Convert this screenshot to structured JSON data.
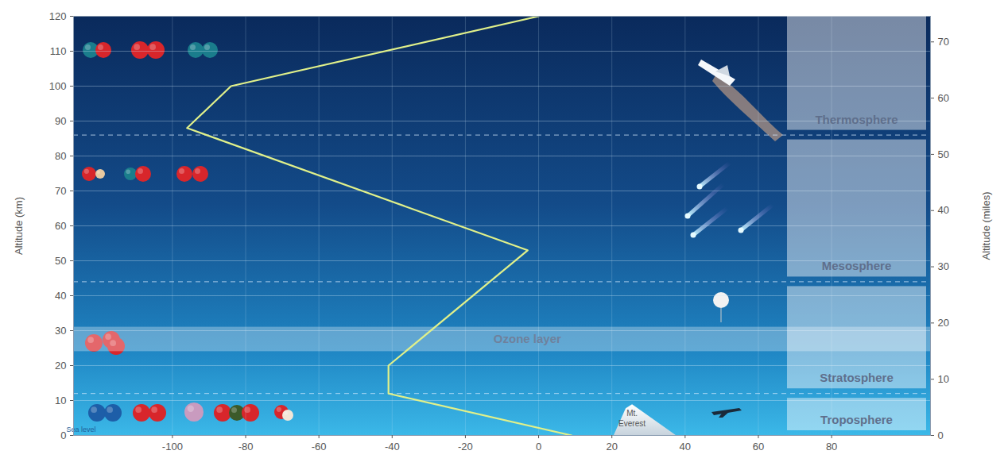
{
  "chart_data": {
    "type": "line",
    "x": [
      9,
      -41,
      -41,
      -3,
      -96,
      -84,
      0
    ],
    "values": [
      0,
      12,
      20,
      53,
      88,
      100,
      120
    ],
    "color": "#e0f08a",
    "line_style": "solid",
    "xlim": [
      -127,
      107
    ],
    "xticks": [
      -100,
      -80,
      -60,
      -40,
      -20,
      0,
      20,
      40,
      60,
      80
    ],
    "ylim": [
      0,
      120
    ],
    "yticks": [
      0,
      10,
      20,
      30,
      40,
      50,
      60,
      70,
      80,
      90,
      100,
      110,
      120
    ],
    "y_label": "Altitude (km)",
    "y2lim": [
      0,
      74.56
    ],
    "y2ticks": [
      0,
      10,
      20,
      30,
      40,
      50,
      60,
      70
    ],
    "y2_label": "Altitude (miles)",
    "grid": true,
    "layers": [
      {
        "name": "Troposphere",
        "bottom": 0,
        "top": 12
      },
      {
        "name": "Stratosphere",
        "bottom": 12,
        "top": 44
      },
      {
        "name": "Mesosphere",
        "bottom": 44,
        "top": 86
      },
      {
        "name": "Thermosphere",
        "bottom": 86,
        "top": 120
      }
    ],
    "ozone_layer": {
      "label": "Ozone layer",
      "bottom": 24,
      "top": 31
    },
    "annotations": [
      {
        "label": "Mt. Everest",
        "altitude": 8.8
      },
      {
        "label": "Sea level",
        "altitude": 0
      }
    ]
  }
}
